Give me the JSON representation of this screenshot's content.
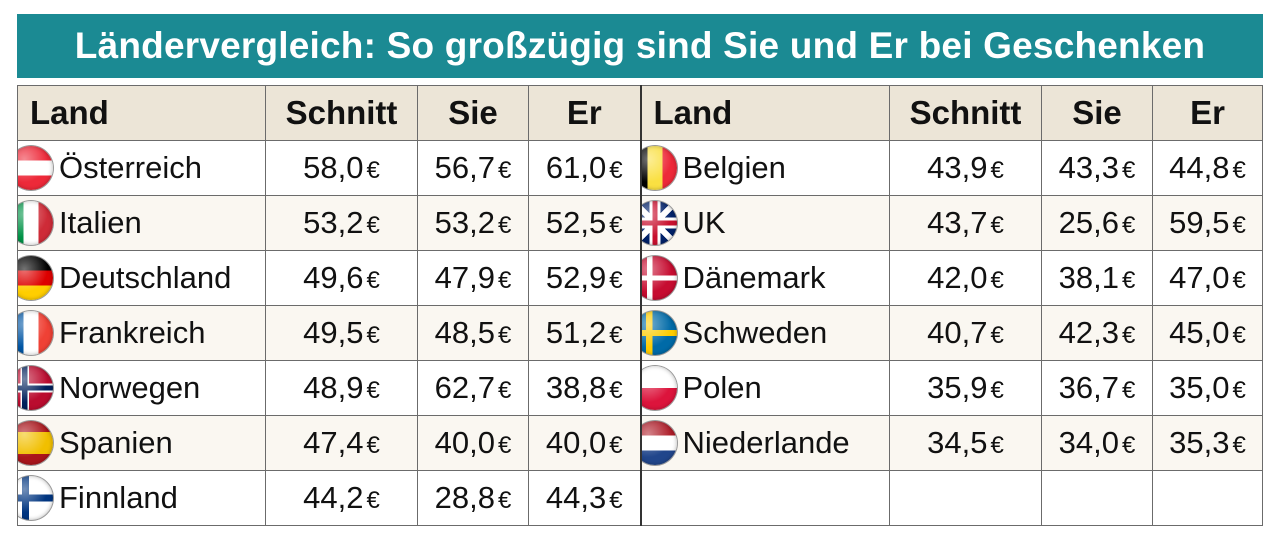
{
  "title": "Ländervergleich: So großzügig sind Sie und Er bei Geschenken",
  "headers": {
    "land": "Land",
    "schnitt": "Schnitt",
    "sie": "Sie",
    "er": "Er"
  },
  "currency": "€",
  "chart_data": {
    "type": "table",
    "title": "Ländervergleich: So großzügig sind Sie und Er bei Geschenken",
    "columns": [
      "Land",
      "Schnitt",
      "Sie",
      "Er"
    ],
    "left_rows": [
      {
        "land": "Österreich",
        "flag": "austria-flag",
        "schnitt": "58,0",
        "sie": "56,7",
        "er": "61,0"
      },
      {
        "land": "Italien",
        "flag": "italy-flag",
        "schnitt": "53,2",
        "sie": "53,2",
        "er": "52,5"
      },
      {
        "land": "Deutschland",
        "flag": "germany-flag",
        "schnitt": "49,6",
        "sie": "47,9",
        "er": "52,9"
      },
      {
        "land": "Frankreich",
        "flag": "france-flag",
        "schnitt": "49,5",
        "sie": "48,5",
        "er": "51,2"
      },
      {
        "land": "Norwegen",
        "flag": "norway-flag",
        "schnitt": "48,9",
        "sie": "62,7",
        "er": "38,8"
      },
      {
        "land": "Spanien",
        "flag": "spain-flag",
        "schnitt": "47,4",
        "sie": "40,0",
        "er": "40,0"
      },
      {
        "land": "Finnland",
        "flag": "finland-flag",
        "schnitt": "44,2",
        "sie": "28,8",
        "er": "44,3"
      }
    ],
    "right_rows": [
      {
        "land": "Belgien",
        "flag": "belgium-flag",
        "schnitt": "43,9",
        "sie": "43,3",
        "er": "44,8"
      },
      {
        "land": "UK",
        "flag": "uk-flag",
        "schnitt": "43,7",
        "sie": "25,6",
        "er": "59,5"
      },
      {
        "land": "Dänemark",
        "flag": "denmark-flag",
        "schnitt": "42,0",
        "sie": "38,1",
        "er": "47,0"
      },
      {
        "land": "Schweden",
        "flag": "sweden-flag",
        "schnitt": "40,7",
        "sie": "42,3",
        "er": "45,0"
      },
      {
        "land": "Polen",
        "flag": "poland-flag",
        "schnitt": "35,9",
        "sie": "36,7",
        "er": "35,0"
      },
      {
        "land": "Niederlande",
        "flag": "netherlands-flag",
        "schnitt": "34,5",
        "sie": "34,0",
        "er": "35,3"
      }
    ]
  },
  "colors": {
    "title_bg": "#1b8a93",
    "header_bg": "#ece5d7"
  }
}
